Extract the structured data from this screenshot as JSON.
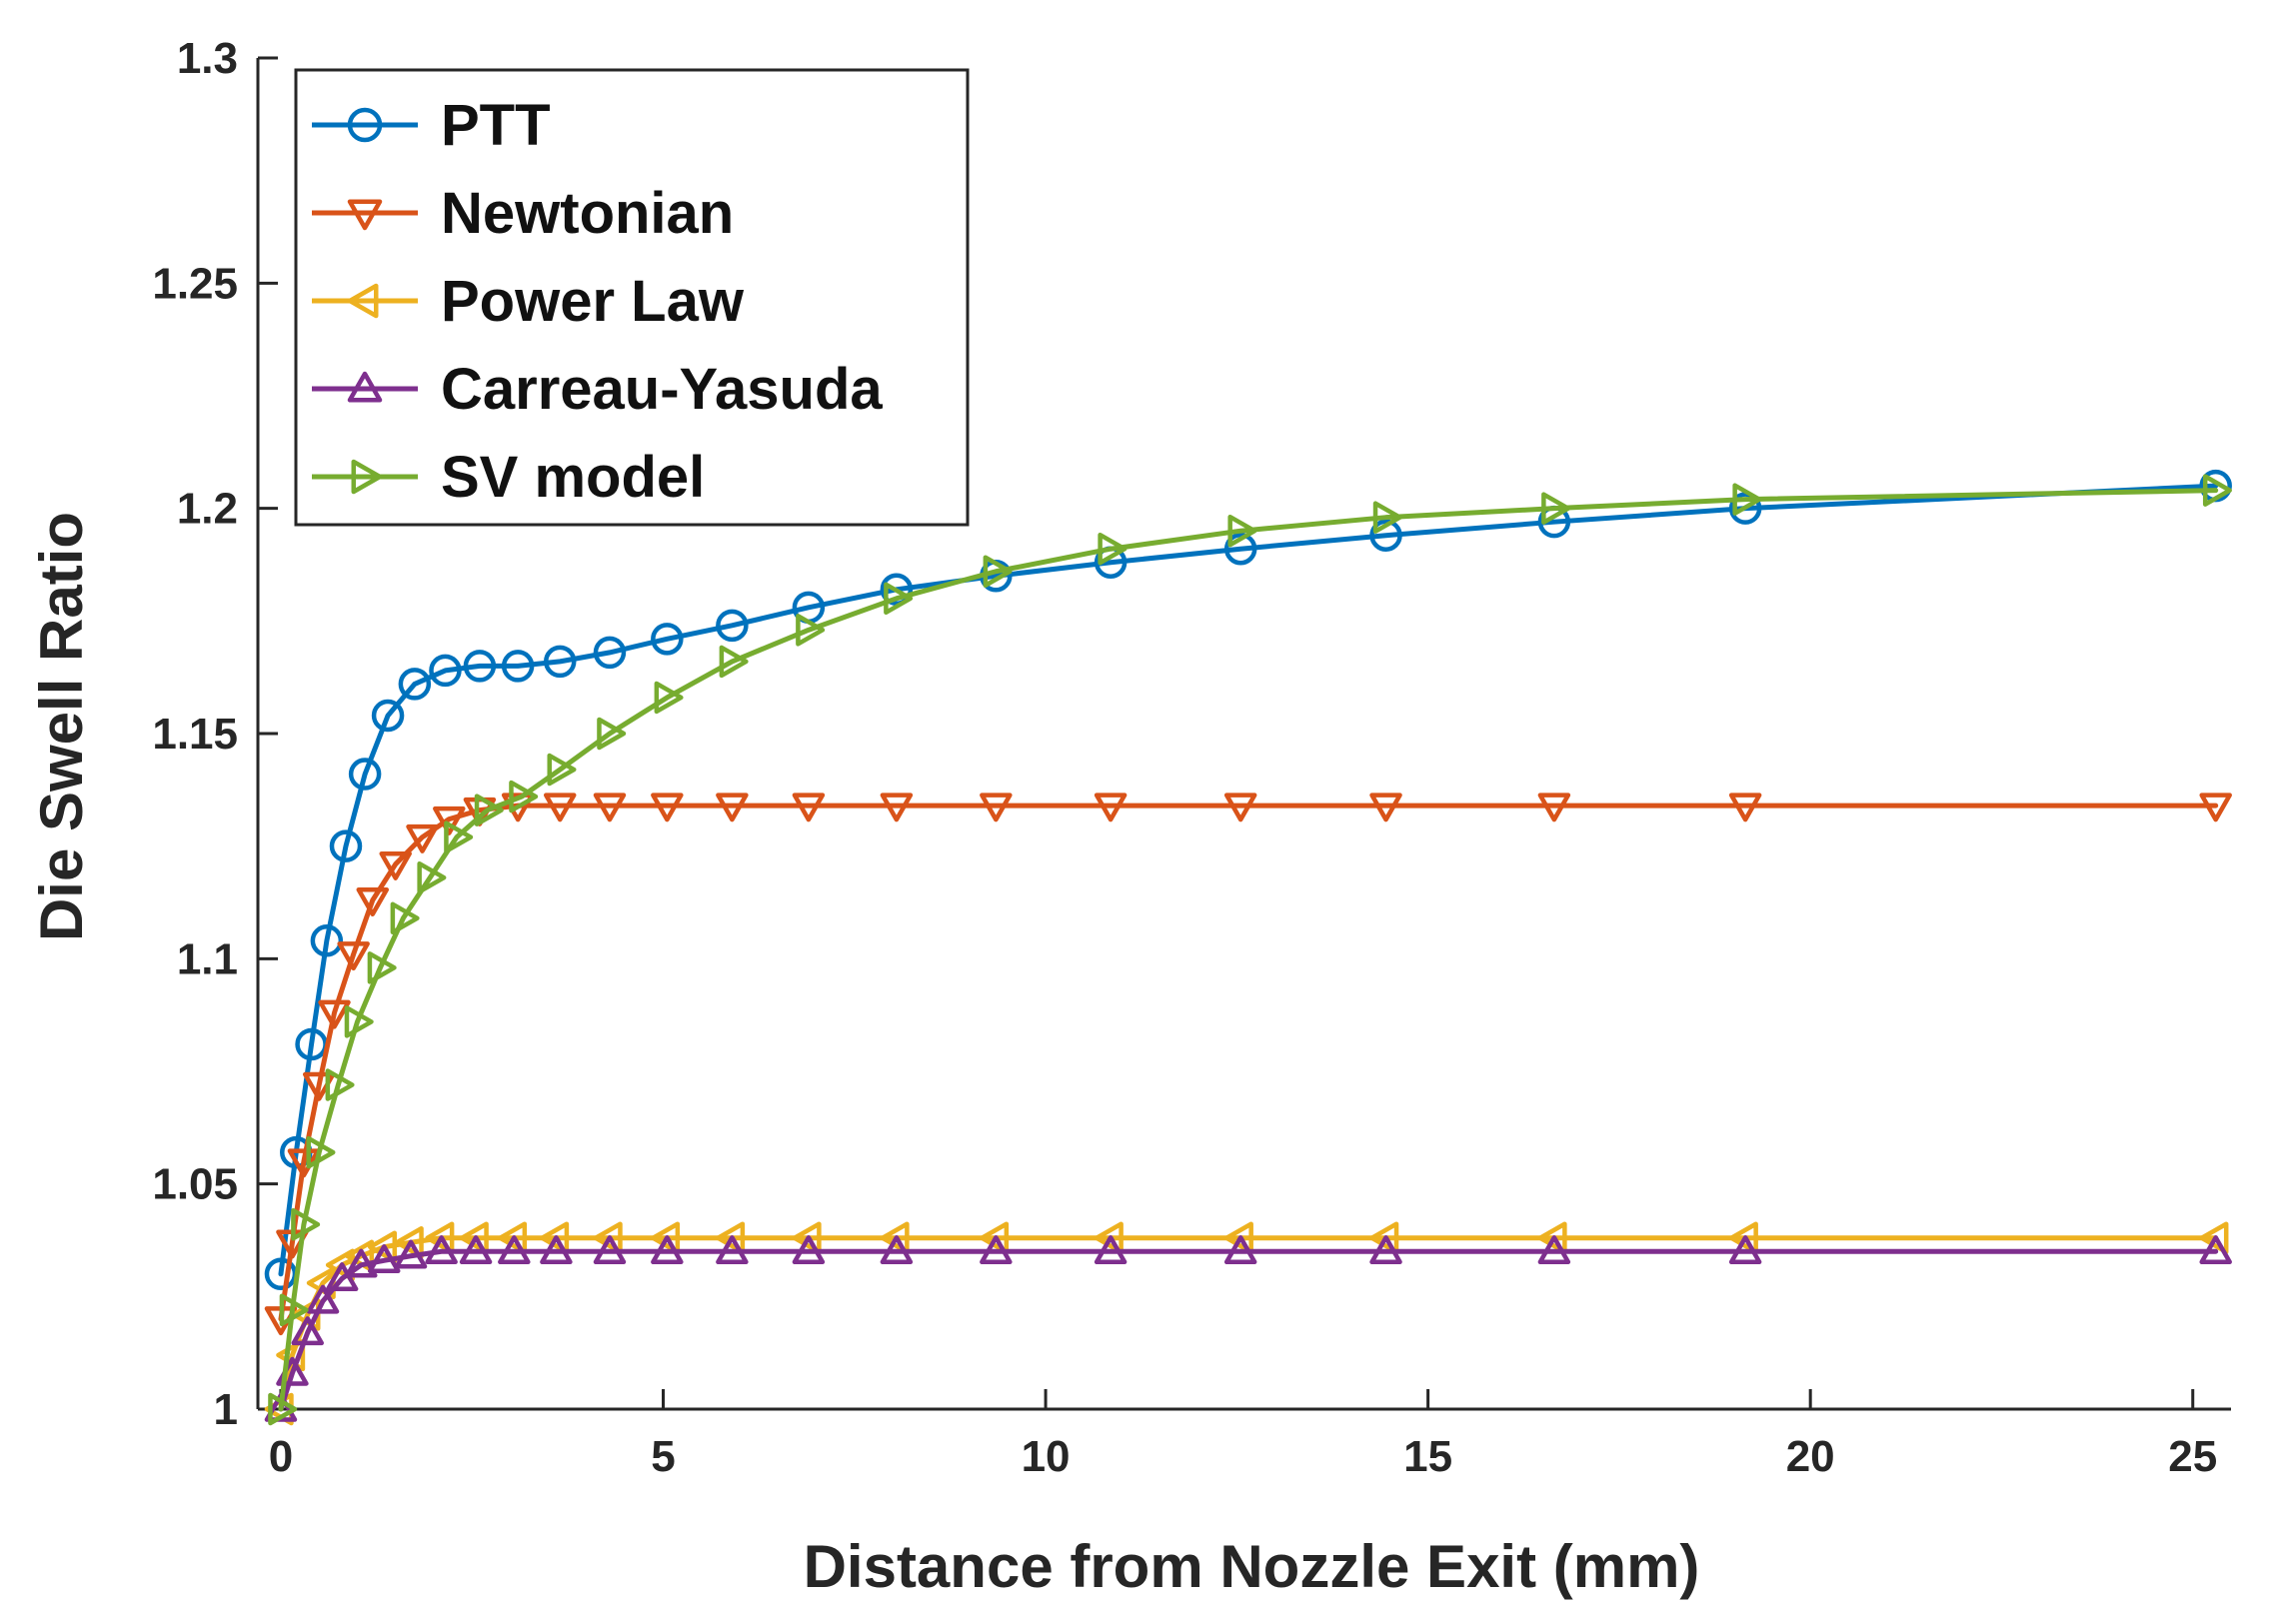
{
  "chart_data": {
    "type": "line",
    "title": "",
    "xlabel": "Distance from Nozzle Exit (mm)",
    "ylabel": "Die Swell Ratio",
    "xlim": [
      -0.3,
      25.5
    ],
    "ylim": [
      1.0,
      1.3
    ],
    "xticks": [
      0,
      5,
      10,
      15,
      20,
      25
    ],
    "yticks": [
      1.0,
      1.05,
      1.1,
      1.15,
      1.2,
      1.25,
      1.3
    ],
    "xtick_labels": [
      "0",
      "5",
      "10",
      "15",
      "20",
      "25"
    ],
    "ytick_labels": [
      "1",
      "1.05",
      "1.1",
      "1.15",
      "1.2",
      "1.25",
      "1.3"
    ],
    "legend_position": "top-left",
    "series": [
      {
        "name": "PTT",
        "color": "#0072BD",
        "marker": "circle",
        "x": [
          0,
          0.2,
          0.4,
          0.6,
          0.85,
          1.1,
          1.4,
          1.75,
          2.15,
          2.6,
          3.1,
          3.65,
          4.3,
          5.05,
          5.9,
          6.9,
          8.05,
          9.35,
          10.85,
          12.55,
          14.45,
          16.65,
          19.15,
          25.3
        ],
        "y": [
          1.03,
          1.057,
          1.081,
          1.104,
          1.125,
          1.141,
          1.154,
          1.161,
          1.164,
          1.165,
          1.165,
          1.166,
          1.168,
          1.171,
          1.174,
          1.178,
          1.182,
          1.185,
          1.188,
          1.191,
          1.194,
          1.197,
          1.2,
          1.205
        ]
      },
      {
        "name": "Newtonian",
        "color": "#D95319",
        "marker": "triangle-down",
        "x": [
          0,
          0.15,
          0.3,
          0.5,
          0.7,
          0.95,
          1.2,
          1.5,
          1.85,
          2.2,
          2.6,
          3.1,
          3.65,
          4.3,
          5.05,
          5.9,
          6.9,
          8.05,
          9.35,
          10.85,
          12.55,
          14.45,
          16.65,
          19.15,
          25.3
        ],
        "y": [
          1.02,
          1.037,
          1.055,
          1.072,
          1.088,
          1.101,
          1.113,
          1.121,
          1.127,
          1.131,
          1.133,
          1.134,
          1.134,
          1.134,
          1.134,
          1.134,
          1.134,
          1.134,
          1.134,
          1.134,
          1.134,
          1.134,
          1.134,
          1.134,
          1.134
        ]
      },
      {
        "name": "Power Law",
        "color": "#EDB120",
        "marker": "triangle-left",
        "x": [
          0,
          0.15,
          0.35,
          0.55,
          0.8,
          1.05,
          1.35,
          1.7,
          2.1,
          2.55,
          3.05,
          3.6,
          4.3,
          5.05,
          5.9,
          6.9,
          8.05,
          9.35,
          10.85,
          12.55,
          14.45,
          16.65,
          19.15,
          25.3
        ],
        "y": [
          1.0,
          1.012,
          1.021,
          1.028,
          1.032,
          1.034,
          1.036,
          1.037,
          1.038,
          1.038,
          1.038,
          1.038,
          1.038,
          1.038,
          1.038,
          1.038,
          1.038,
          1.038,
          1.038,
          1.038,
          1.038,
          1.038,
          1.038,
          1.038
        ]
      },
      {
        "name": "Carreau-Yasuda",
        "color": "#7E2F8E",
        "marker": "triangle-up",
        "x": [
          0,
          0.15,
          0.35,
          0.55,
          0.8,
          1.05,
          1.35,
          1.7,
          2.1,
          2.55,
          3.05,
          3.6,
          4.3,
          5.05,
          5.9,
          6.9,
          8.05,
          9.35,
          10.85,
          12.55,
          14.45,
          16.65,
          19.15,
          25.3
        ],
        "y": [
          1.0,
          1.008,
          1.017,
          1.024,
          1.029,
          1.032,
          1.033,
          1.034,
          1.035,
          1.035,
          1.035,
          1.035,
          1.035,
          1.035,
          1.035,
          1.035,
          1.035,
          1.035,
          1.035,
          1.035,
          1.035,
          1.035,
          1.035,
          1.035
        ]
      },
      {
        "name": "SV model",
        "color": "#77AC30",
        "marker": "triangle-right",
        "x": [
          0,
          0.15,
          0.3,
          0.5,
          0.75,
          1.0,
          1.3,
          1.6,
          1.95,
          2.3,
          2.7,
          3.15,
          3.65,
          4.3,
          5.05,
          5.9,
          6.9,
          8.05,
          9.35,
          10.85,
          12.55,
          14.45,
          16.65,
          19.15,
          25.3
        ],
        "y": [
          1.0,
          1.022,
          1.041,
          1.057,
          1.072,
          1.086,
          1.098,
          1.109,
          1.118,
          1.127,
          1.133,
          1.136,
          1.142,
          1.15,
          1.158,
          1.166,
          1.173,
          1.18,
          1.186,
          1.191,
          1.195,
          1.198,
          1.2,
          1.202,
          1.204
        ]
      }
    ]
  }
}
